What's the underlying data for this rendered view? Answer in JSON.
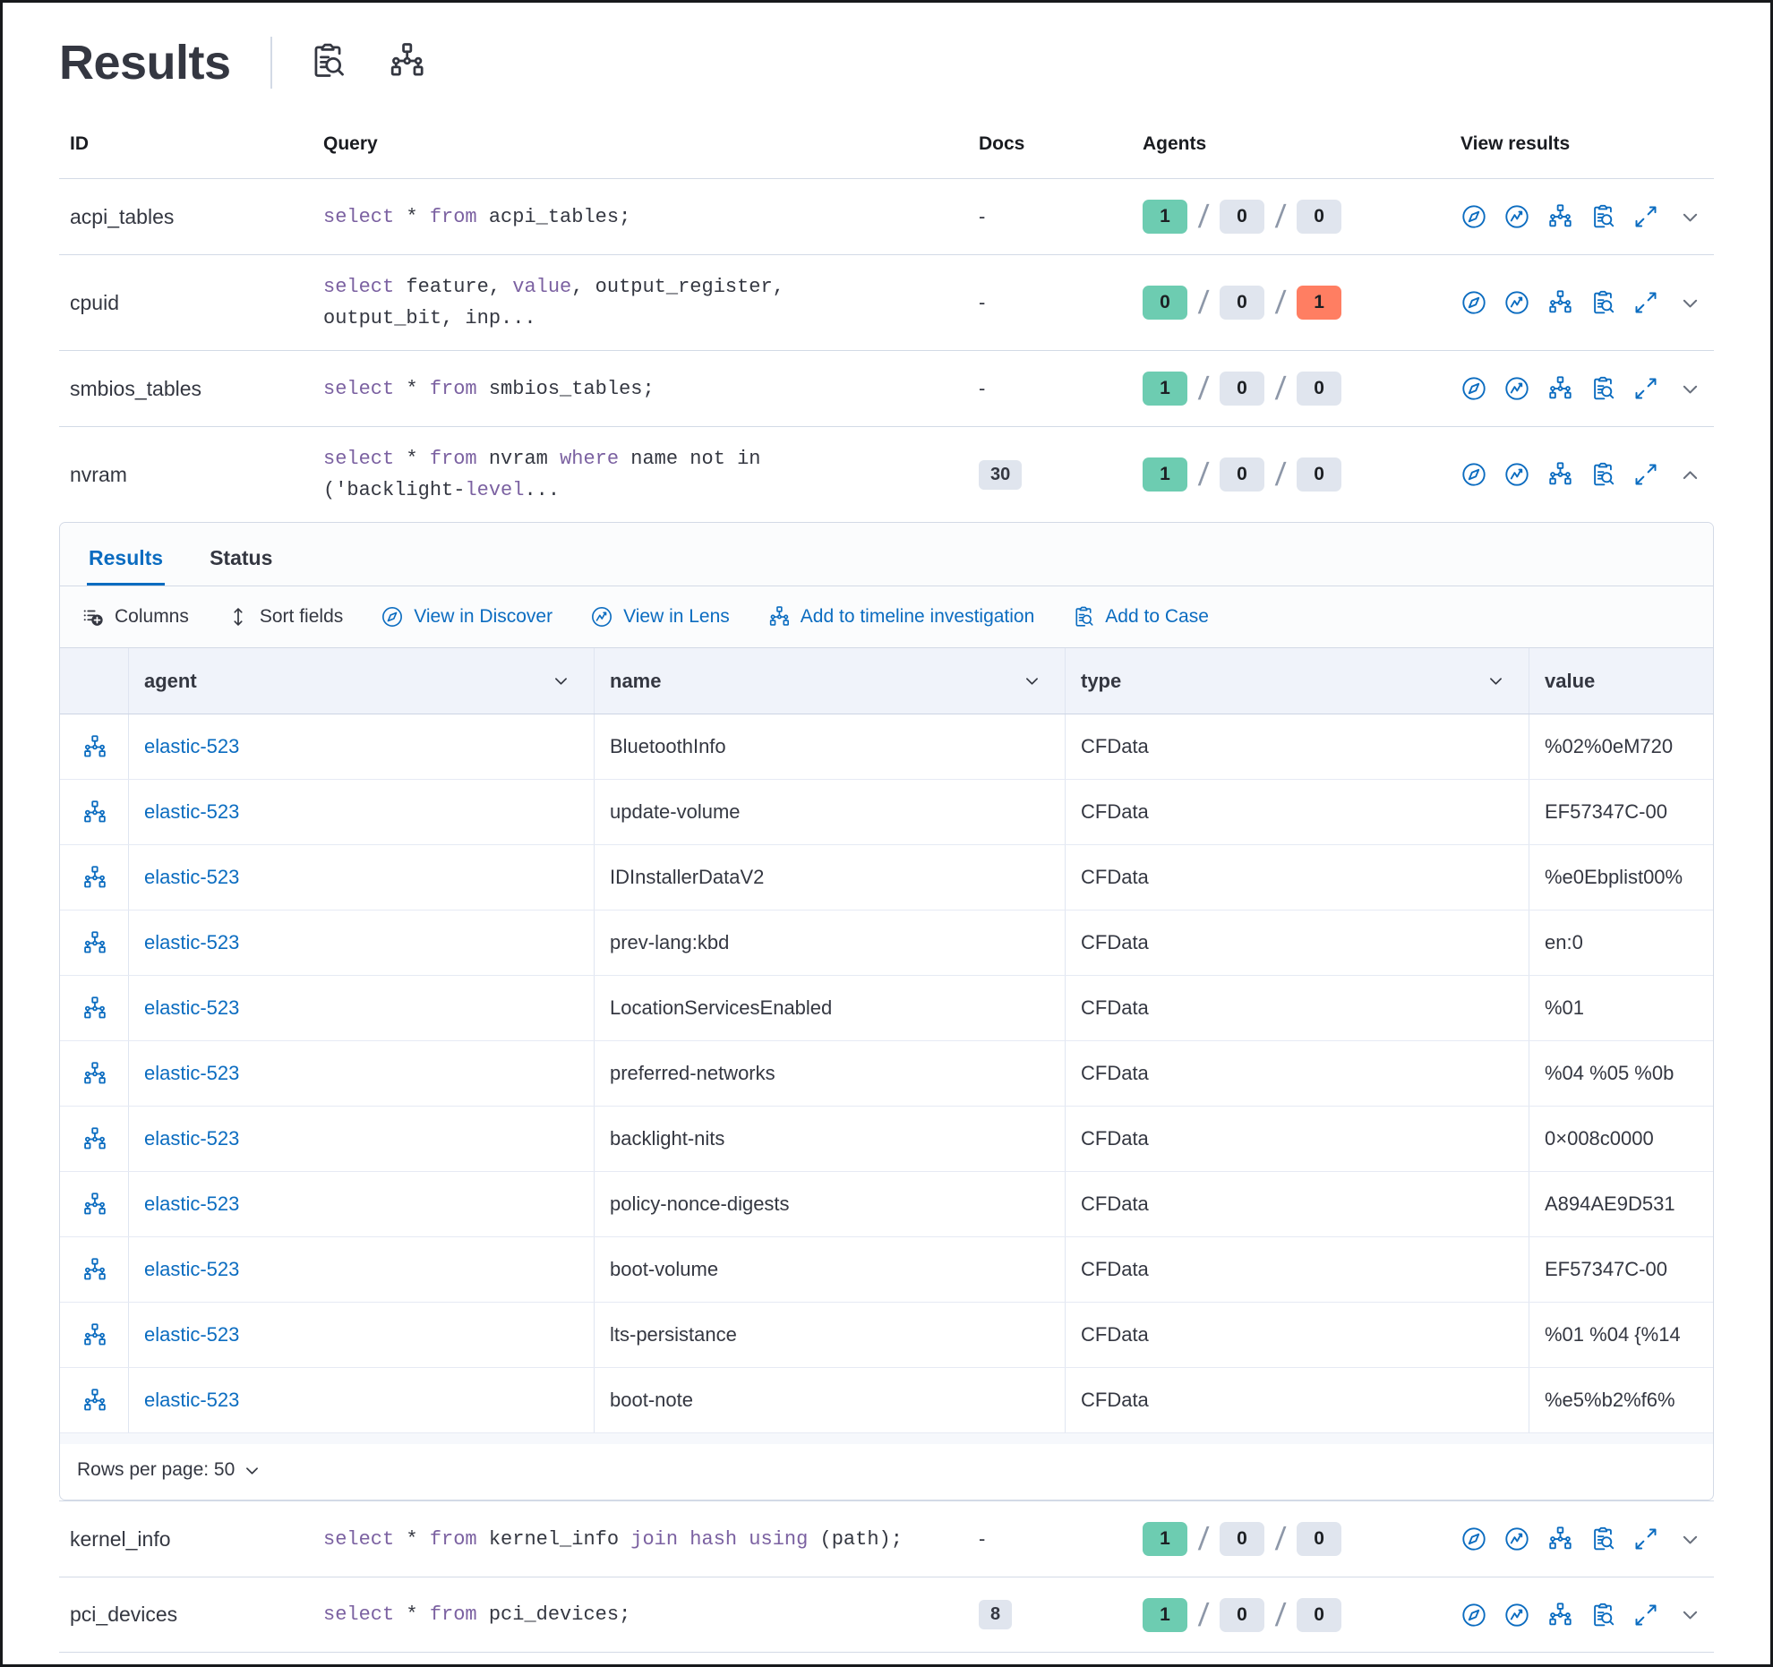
{
  "colors": {
    "primary": "#0b6cc0",
    "keyword": "#7b61a1",
    "success": "#6dccb1",
    "neutral": "#e0e5ee",
    "danger": "#ff7e62"
  },
  "header": {
    "title": "Results",
    "icons": [
      "inspect-icon",
      "node-tree-icon"
    ]
  },
  "query_table": {
    "columns": {
      "id": "ID",
      "query": "Query",
      "docs": "Docs",
      "agents": "Agents",
      "view": "View results"
    },
    "rows": [
      {
        "id": "acpi_tables",
        "docs": "-",
        "docs_is_badge": false,
        "expanded": false,
        "agents": [
          {
            "value": "1",
            "status": "success"
          },
          {
            "value": "0",
            "status": "neutral"
          },
          {
            "value": "0",
            "status": "neutral"
          }
        ],
        "query": [
          [
            {
              "t": "select",
              "kw": true
            },
            {
              "t": " * "
            },
            {
              "t": "from",
              "kw": true
            },
            {
              "t": " acpi_tables;"
            }
          ]
        ]
      },
      {
        "id": "cpuid",
        "docs": "-",
        "docs_is_badge": false,
        "expanded": false,
        "agents": [
          {
            "value": "0",
            "status": "success"
          },
          {
            "value": "0",
            "status": "neutral"
          },
          {
            "value": "1",
            "status": "danger"
          }
        ],
        "query": [
          [
            {
              "t": "select",
              "kw": true
            },
            {
              "t": " feature, "
            },
            {
              "t": "value",
              "kw": true
            },
            {
              "t": ", output_register,"
            }
          ],
          [
            {
              "t": "output_bit, inp..."
            }
          ]
        ]
      },
      {
        "id": "smbios_tables",
        "docs": "-",
        "docs_is_badge": false,
        "expanded": false,
        "agents": [
          {
            "value": "1",
            "status": "success"
          },
          {
            "value": "0",
            "status": "neutral"
          },
          {
            "value": "0",
            "status": "neutral"
          }
        ],
        "query": [
          [
            {
              "t": "select",
              "kw": true
            },
            {
              "t": " * "
            },
            {
              "t": "from",
              "kw": true
            },
            {
              "t": " smbios_tables;"
            }
          ]
        ]
      },
      {
        "id": "nvram",
        "docs": "30",
        "docs_is_badge": true,
        "expanded": true,
        "agents": [
          {
            "value": "1",
            "status": "success"
          },
          {
            "value": "0",
            "status": "neutral"
          },
          {
            "value": "0",
            "status": "neutral"
          }
        ],
        "query": [
          [
            {
              "t": "select",
              "kw": true
            },
            {
              "t": " * "
            },
            {
              "t": "from",
              "kw": true
            },
            {
              "t": " nvram "
            },
            {
              "t": "where",
              "kw": true
            },
            {
              "t": " name not in"
            }
          ],
          [
            {
              "t": "('backlight-"
            },
            {
              "t": "level",
              "kw": true
            },
            {
              "t": "..."
            }
          ]
        ]
      },
      {
        "id": "kernel_info",
        "docs": "-",
        "docs_is_badge": false,
        "expanded": false,
        "agents": [
          {
            "value": "1",
            "status": "success"
          },
          {
            "value": "0",
            "status": "neutral"
          },
          {
            "value": "0",
            "status": "neutral"
          }
        ],
        "query": [
          [
            {
              "t": "select",
              "kw": true
            },
            {
              "t": " * "
            },
            {
              "t": "from",
              "kw": true
            },
            {
              "t": " kernel_info "
            },
            {
              "t": "join hash using",
              "kw": true
            },
            {
              "t": " (path);"
            }
          ]
        ]
      },
      {
        "id": "pci_devices",
        "docs": "8",
        "docs_is_badge": true,
        "expanded": false,
        "agents": [
          {
            "value": "1",
            "status": "success"
          },
          {
            "value": "0",
            "status": "neutral"
          },
          {
            "value": "0",
            "status": "neutral"
          }
        ],
        "query": [
          [
            {
              "t": "select",
              "kw": true
            },
            {
              "t": " * "
            },
            {
              "t": "from",
              "kw": true
            },
            {
              "t": " pci_devices;"
            }
          ]
        ]
      }
    ]
  },
  "view_results_icons": [
    "discover-icon",
    "lens-icon",
    "timeline-icon",
    "case-icon",
    "expand-icon"
  ],
  "panel": {
    "tabs": [
      {
        "label": "Results",
        "active": true
      },
      {
        "label": "Status",
        "active": false
      }
    ],
    "toolbar": [
      {
        "label": "Columns",
        "icon": "columns-icon",
        "variant": "dark"
      },
      {
        "label": "Sort fields",
        "icon": "sort-fields-icon",
        "variant": "dark"
      },
      {
        "label": "View in Discover",
        "icon": "discover-icon",
        "variant": "primary"
      },
      {
        "label": "View in Lens",
        "icon": "lens-icon",
        "variant": "primary"
      },
      {
        "label": "Add to timeline investigation",
        "icon": "timeline-icon",
        "variant": "primary"
      },
      {
        "label": "Add to Case",
        "icon": "case-icon",
        "variant": "primary"
      }
    ],
    "grid": {
      "columns": [
        {
          "key": "agent",
          "label": "agent",
          "sortable": true
        },
        {
          "key": "name",
          "label": "name",
          "sortable": true
        },
        {
          "key": "type",
          "label": "type",
          "sortable": true
        },
        {
          "key": "value",
          "label": "value",
          "sortable": false
        }
      ],
      "rows": [
        {
          "agent": "elastic-523",
          "name": "BluetoothInfo",
          "type": "CFData",
          "value": "%02%0eM720"
        },
        {
          "agent": "elastic-523",
          "name": "update-volume",
          "type": "CFData",
          "value": "EF57347C-00"
        },
        {
          "agent": "elastic-523",
          "name": "IDInstallerDataV2",
          "type": "CFData",
          "value": "%e0Ebplist00%"
        },
        {
          "agent": "elastic-523",
          "name": "prev-lang:kbd",
          "type": "CFData",
          "value": "en:0"
        },
        {
          "agent": "elastic-523",
          "name": "LocationServicesEnabled",
          "type": "CFData",
          "value": "%01"
        },
        {
          "agent": "elastic-523",
          "name": "preferred-networks",
          "type": "CFData",
          "value": "%04 %05 %0b"
        },
        {
          "agent": "elastic-523",
          "name": "backlight-nits",
          "type": "CFData",
          "value": "0×008c0000"
        },
        {
          "agent": "elastic-523",
          "name": "policy-nonce-digests",
          "type": "CFData",
          "value": "A894AE9D531"
        },
        {
          "agent": "elastic-523",
          "name": "boot-volume",
          "type": "CFData",
          "value": "EF57347C-00"
        },
        {
          "agent": "elastic-523",
          "name": "lts-persistance",
          "type": "CFData",
          "value": "%01 %04 {%14"
        },
        {
          "agent": "elastic-523",
          "name": "boot-note",
          "type": "CFData",
          "value": "%e5%b2%f6%"
        }
      ],
      "rows_per_page_label": "Rows per page: 50"
    }
  }
}
